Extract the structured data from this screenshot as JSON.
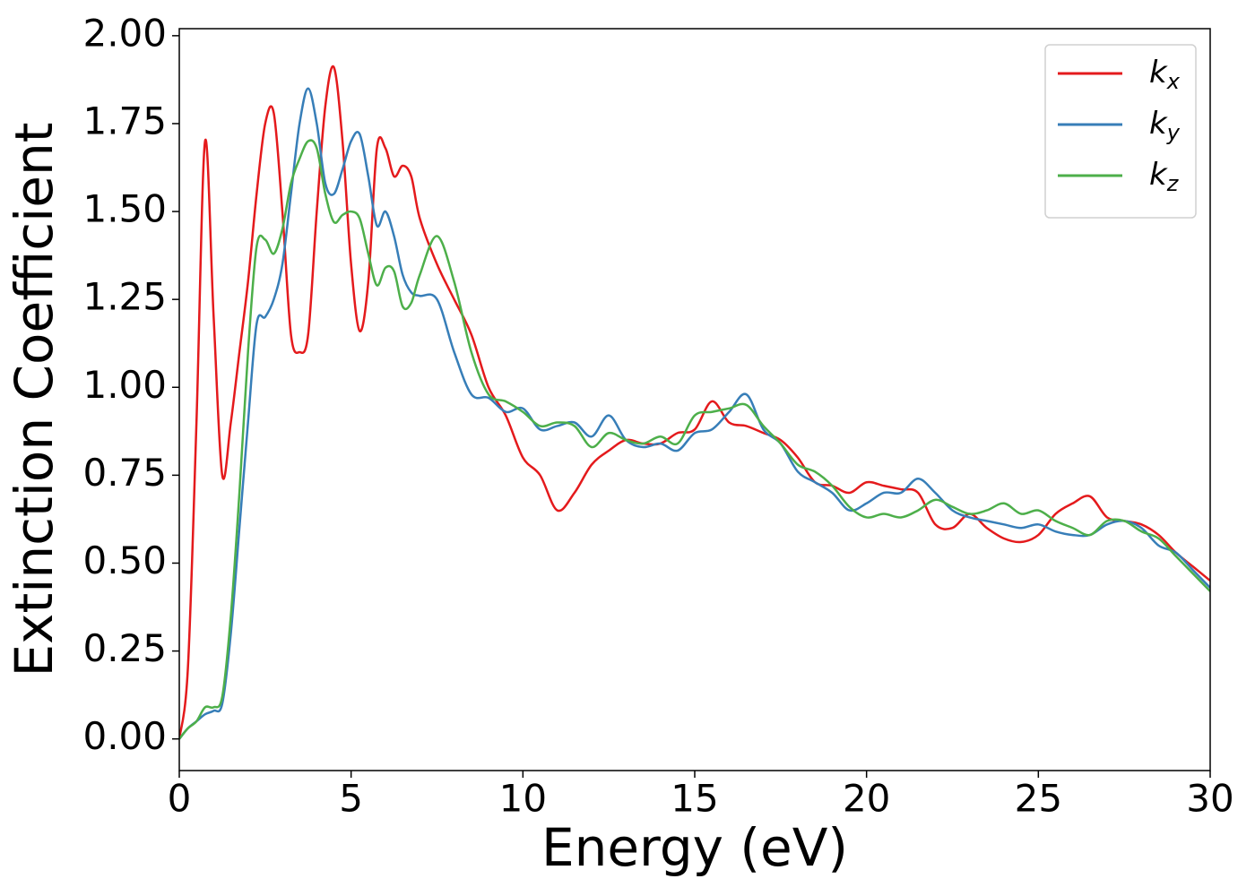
{
  "chart_data": {
    "type": "line",
    "xlabel": "Energy (eV)",
    "ylabel": "Extinction Coefficient",
    "xlim": [
      0,
      30
    ],
    "ylim": [
      -0.09,
      2.02
    ],
    "xticks": [
      0,
      5,
      10,
      15,
      20,
      25,
      30
    ],
    "yticks": [
      {
        "value": 0,
        "label": "0.00"
      },
      {
        "value": 0.25,
        "label": "0.25"
      },
      {
        "value": 0.5,
        "label": "0.50"
      },
      {
        "value": 0.75,
        "label": "0.75"
      },
      {
        "value": 1,
        "label": "1.00"
      },
      {
        "value": 1.25,
        "label": "1.25"
      },
      {
        "value": 1.5,
        "label": "1.50"
      },
      {
        "value": 1.75,
        "label": "1.75"
      },
      {
        "value": 2,
        "label": "2.00"
      }
    ],
    "legend": "upper right",
    "x": [
      0,
      0.25,
      0.5,
      0.75,
      1,
      1.25,
      1.5,
      1.75,
      2,
      2.25,
      2.5,
      2.75,
      3,
      3.25,
      3.5,
      3.75,
      4,
      4.25,
      4.5,
      4.75,
      5,
      5.25,
      5.5,
      5.75,
      6,
      6.25,
      6.5,
      6.75,
      7,
      7.5,
      8,
      8.5,
      9,
      9.5,
      10,
      10.5,
      11,
      11.5,
      12,
      12.5,
      13,
      13.5,
      14,
      14.5,
      15,
      15.5,
      16,
      16.5,
      17,
      17.5,
      18,
      18.5,
      19,
      19.5,
      20,
      20.5,
      21,
      21.5,
      22,
      22.5,
      23,
      23.5,
      24,
      24.5,
      25,
      25.5,
      26,
      26.5,
      27,
      27.5,
      28,
      28.5,
      29,
      29.5,
      30
    ],
    "series": [
      {
        "name": "kx",
        "color": "#e41a1c",
        "values": [
          0,
          0.2,
          0.9,
          1.7,
          1.2,
          0.75,
          0.9,
          1.1,
          1.3,
          1.55,
          1.75,
          1.78,
          1.5,
          1.15,
          1.1,
          1.15,
          1.5,
          1.8,
          1.91,
          1.7,
          1.35,
          1.16,
          1.3,
          1.68,
          1.68,
          1.6,
          1.63,
          1.6,
          1.48,
          1.35,
          1.25,
          1.15,
          1.0,
          0.92,
          0.8,
          0.75,
          0.65,
          0.7,
          0.78,
          0.82,
          0.85,
          0.84,
          0.84,
          0.87,
          0.88,
          0.96,
          0.9,
          0.89,
          0.87,
          0.85,
          0.8,
          0.73,
          0.72,
          0.7,
          0.73,
          0.72,
          0.71,
          0.7,
          0.61,
          0.6,
          0.64,
          0.6,
          0.57,
          0.56,
          0.58,
          0.64,
          0.67,
          0.69,
          0.63,
          0.62,
          0.61,
          0.58,
          0.53,
          0.49,
          0.45
        ]
      },
      {
        "name": "ky",
        "color": "#377eb8",
        "values": [
          0,
          0.03,
          0.05,
          0.07,
          0.08,
          0.1,
          0.3,
          0.6,
          0.9,
          1.18,
          1.2,
          1.25,
          1.35,
          1.55,
          1.75,
          1.85,
          1.75,
          1.58,
          1.55,
          1.62,
          1.7,
          1.72,
          1.6,
          1.46,
          1.5,
          1.43,
          1.32,
          1.27,
          1.26,
          1.25,
          1.1,
          0.98,
          0.97,
          0.93,
          0.94,
          0.88,
          0.89,
          0.9,
          0.86,
          0.92,
          0.85,
          0.83,
          0.84,
          0.82,
          0.87,
          0.88,
          0.93,
          0.98,
          0.88,
          0.84,
          0.76,
          0.73,
          0.7,
          0.65,
          0.67,
          0.7,
          0.7,
          0.74,
          0.7,
          0.65,
          0.63,
          0.62,
          0.61,
          0.6,
          0.61,
          0.59,
          0.58,
          0.58,
          0.61,
          0.62,
          0.6,
          0.55,
          0.53,
          0.48,
          0.43
        ]
      },
      {
        "name": "kz",
        "color": "#4daf4a",
        "values": [
          0,
          0.03,
          0.05,
          0.09,
          0.09,
          0.12,
          0.35,
          0.7,
          1.1,
          1.4,
          1.42,
          1.38,
          1.45,
          1.58,
          1.65,
          1.7,
          1.68,
          1.55,
          1.47,
          1.49,
          1.5,
          1.48,
          1.38,
          1.29,
          1.34,
          1.33,
          1.23,
          1.24,
          1.32,
          1.43,
          1.3,
          1.1,
          0.98,
          0.96,
          0.93,
          0.89,
          0.9,
          0.89,
          0.83,
          0.87,
          0.85,
          0.84,
          0.86,
          0.84,
          0.92,
          0.93,
          0.94,
          0.95,
          0.89,
          0.84,
          0.78,
          0.76,
          0.72,
          0.66,
          0.63,
          0.64,
          0.63,
          0.65,
          0.68,
          0.66,
          0.64,
          0.65,
          0.67,
          0.64,
          0.65,
          0.62,
          0.6,
          0.58,
          0.62,
          0.62,
          0.59,
          0.57,
          0.52,
          0.47,
          0.42
        ]
      }
    ]
  }
}
